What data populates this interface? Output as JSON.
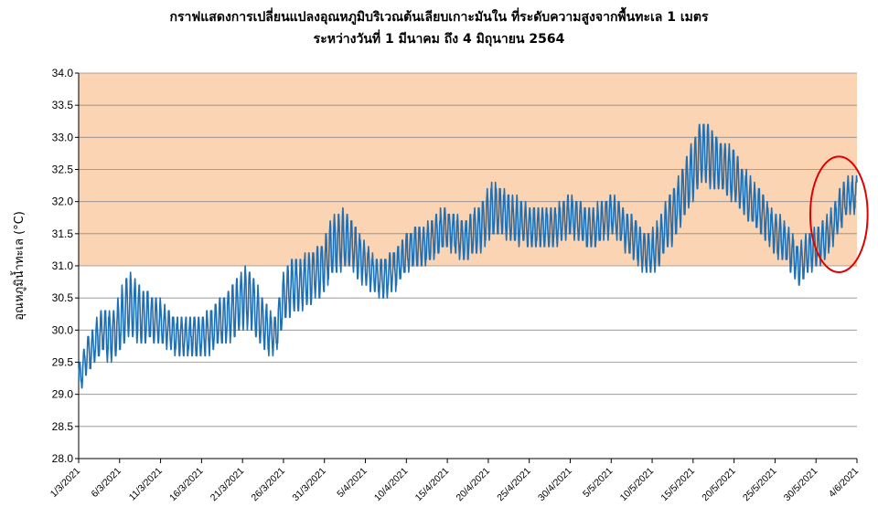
{
  "chart_data": {
    "type": "line",
    "title_line1": "กราฟแสดงการเปลี่ยนแปลงอุณหภูมิบริเวณต้นเลียบเกาะมันใน ที่ระดับความสูงจากพื้นทะเล 1 เมตร",
    "title_line2": "ระหว่างวันที่ 1 มีนาคม ถึง 4 มิถุนายน 2564",
    "xlabel": "",
    "ylabel": "อุณหภูมิน้ำทะเล (°C)",
    "ylim": [
      28.0,
      34.0
    ],
    "yticks": [
      "28.0",
      "28.5",
      "29.0",
      "29.5",
      "30.0",
      "30.5",
      "31.0",
      "31.5",
      "32.0",
      "32.5",
      "33.0",
      "33.5",
      "34.0"
    ],
    "xlim_days": [
      0,
      95
    ],
    "xticks": [
      {
        "label": "1/3/2021",
        "day": 0
      },
      {
        "label": "6/3/2021",
        "day": 5
      },
      {
        "label": "11/3/2021",
        "day": 10
      },
      {
        "label": "16/3/2021",
        "day": 15
      },
      {
        "label": "21/3/2021",
        "day": 20
      },
      {
        "label": "26/3/2021",
        "day": 25
      },
      {
        "label": "31/3/2021",
        "day": 30
      },
      {
        "label": "5/4/2021",
        "day": 35
      },
      {
        "label": "10/4/2021",
        "day": 40
      },
      {
        "label": "15/4/2021",
        "day": 45
      },
      {
        "label": "20/4/2021",
        "day": 50
      },
      {
        "label": "25/4/2021",
        "day": 55
      },
      {
        "label": "30/4/2021",
        "day": 60
      },
      {
        "label": "5/5/2021",
        "day": 65
      },
      {
        "label": "10/5/2021",
        "day": 70
      },
      {
        "label": "15/5/2021",
        "day": 75
      },
      {
        "label": "20/5/2021",
        "day": 80
      },
      {
        "label": "25/5/2021",
        "day": 85
      },
      {
        "label": "30/5/2021",
        "day": 90
      },
      {
        "label": "4/6/2021",
        "day": 95
      }
    ],
    "shaded_band": {
      "from": 31.0,
      "to": 34.0,
      "color": "#fad4b3"
    },
    "grid": true,
    "series": [
      {
        "name": "",
        "color": "#1f6fb5",
        "daily_mean": [
          29.2,
          29.6,
          29.8,
          30.0,
          29.9,
          30.1,
          30.4,
          30.3,
          30.2,
          30.2,
          30.1,
          30.0,
          29.9,
          29.9,
          29.9,
          29.9,
          30.0,
          30.1,
          30.2,
          30.3,
          30.5,
          30.5,
          30.2,
          30.0,
          29.9,
          30.5,
          30.7,
          30.7,
          30.8,
          30.9,
          31.0,
          31.3,
          31.4,
          31.4,
          31.2,
          31.0,
          30.9,
          30.8,
          30.9,
          31.0,
          31.2,
          31.3,
          31.3,
          31.4,
          31.5,
          31.6,
          31.5,
          31.4,
          31.5,
          31.6,
          31.8,
          31.9,
          31.8,
          31.7,
          31.7,
          31.6,
          31.6,
          31.6,
          31.6,
          31.7,
          31.8,
          31.7,
          31.6,
          31.6,
          31.7,
          31.8,
          31.7,
          31.5,
          31.4,
          31.2,
          31.2,
          31.4,
          31.7,
          31.9,
          32.2,
          32.5,
          32.8,
          32.7,
          32.6,
          32.5,
          32.4,
          32.2,
          32.0,
          31.9,
          31.7,
          31.5,
          31.4,
          31.2,
          31.0,
          31.2,
          31.3,
          31.4,
          31.6,
          31.9,
          32.1,
          32.1
        ],
        "daily_swing": [
          0.25,
          0.25,
          0.3,
          0.35,
          0.4,
          0.45,
          0.5,
          0.45,
          0.4,
          0.35,
          0.35,
          0.3,
          0.3,
          0.3,
          0.3,
          0.3,
          0.35,
          0.35,
          0.4,
          0.45,
          0.45,
          0.45,
          0.4,
          0.35,
          0.3,
          0.4,
          0.4,
          0.4,
          0.4,
          0.4,
          0.4,
          0.45,
          0.45,
          0.4,
          0.35,
          0.3,
          0.3,
          0.3,
          0.3,
          0.3,
          0.3,
          0.3,
          0.3,
          0.3,
          0.3,
          0.3,
          0.3,
          0.3,
          0.35,
          0.35,
          0.4,
          0.4,
          0.35,
          0.35,
          0.35,
          0.3,
          0.3,
          0.3,
          0.3,
          0.3,
          0.3,
          0.3,
          0.3,
          0.3,
          0.3,
          0.3,
          0.3,
          0.3,
          0.3,
          0.3,
          0.3,
          0.35,
          0.4,
          0.4,
          0.4,
          0.45,
          0.5,
          0.45,
          0.4,
          0.4,
          0.4,
          0.35,
          0.35,
          0.35,
          0.3,
          0.3,
          0.3,
          0.3,
          0.3,
          0.3,
          0.3,
          0.3,
          0.3,
          0.3,
          0.25,
          0.25
        ]
      }
    ],
    "annotation": {
      "type": "ellipse",
      "color": "#e00000",
      "center_day": 92.8,
      "center_value": 31.8,
      "rx_days": 3.5,
      "ry_value": 0.9
    }
  }
}
